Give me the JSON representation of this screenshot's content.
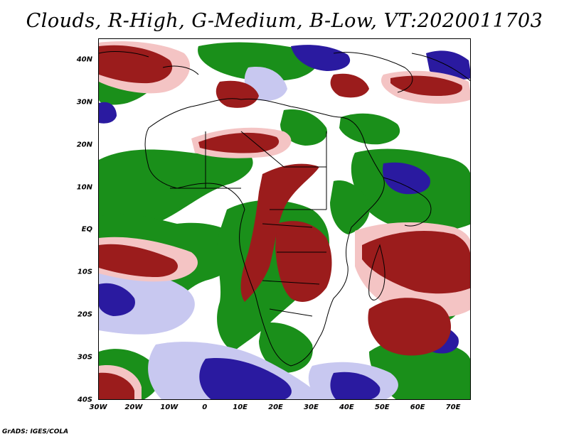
{
  "title": "Clouds, R-High, G-Medium, B-Low, VT:2020011703",
  "credit": "GrADS: IGES/COLA",
  "map": {
    "lon_range": [
      -30,
      75
    ],
    "lat_range": [
      -40,
      45
    ],
    "lat_ticks": [
      {
        "value": 40,
        "label": "40N"
      },
      {
        "value": 30,
        "label": "30N"
      },
      {
        "value": 20,
        "label": "20N"
      },
      {
        "value": 10,
        "label": "10N"
      },
      {
        "value": 0,
        "label": "EQ"
      },
      {
        "value": -10,
        "label": "10S"
      },
      {
        "value": -20,
        "label": "20S"
      },
      {
        "value": -30,
        "label": "30S"
      },
      {
        "value": -40,
        "label": "40S"
      }
    ],
    "lon_ticks": [
      {
        "value": -30,
        "label": "30W"
      },
      {
        "value": -20,
        "label": "20W"
      },
      {
        "value": -10,
        "label": "10W"
      },
      {
        "value": 0,
        "label": "0"
      },
      {
        "value": 10,
        "label": "10E"
      },
      {
        "value": 20,
        "label": "20E"
      },
      {
        "value": 30,
        "label": "30E"
      },
      {
        "value": 40,
        "label": "40E"
      },
      {
        "value": 50,
        "label": "50E"
      },
      {
        "value": 60,
        "label": "60E"
      },
      {
        "value": 70,
        "label": "70E"
      }
    ],
    "colors": {
      "high": "#9b1c1c",
      "high_light": "#f4c4c4",
      "medium": "#1a8f1a",
      "low": "#2a1aa0",
      "low_light": "#c8c8f0",
      "coast": "#000000"
    }
  }
}
